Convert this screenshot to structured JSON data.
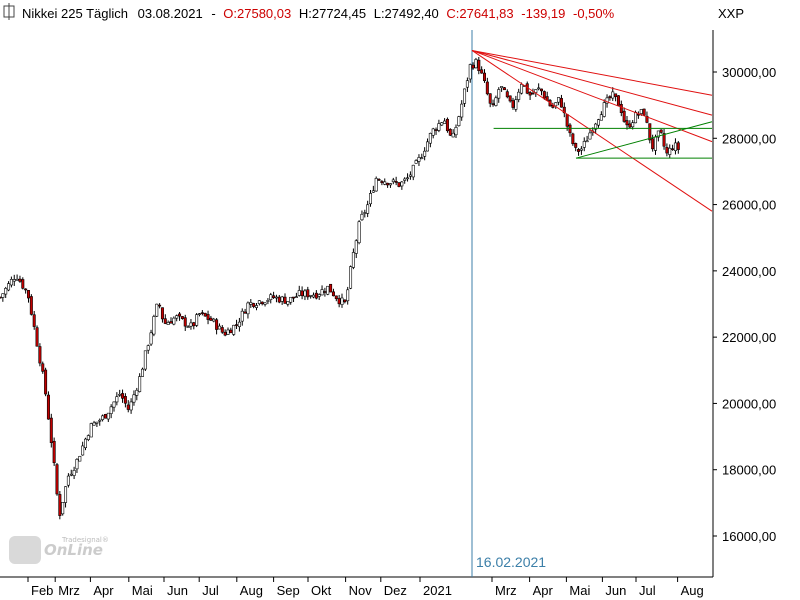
{
  "header": {
    "instrument": "Nikkei 225 Täglich",
    "date": "03.08.2021",
    "sep": "-",
    "open": "O:27580,03",
    "high": "H:27724,45",
    "low": "L:27492,40",
    "close": "C:27641,83",
    "change": "-139,19",
    "change_pct": "-0,50%",
    "symbol": "XXP"
  },
  "marker": {
    "label": "16.02.2021"
  },
  "logo": {
    "brand": "OnLine",
    "sub": "Tradesignal®"
  },
  "colors": {
    "up": "#ffffff",
    "down": "#c00000",
    "wick": "#000000",
    "resistance": "#e01010",
    "support": "#008000",
    "marker": "#3c7fa8"
  },
  "chart_data": {
    "type": "candlestick",
    "title": "Nikkei 225 Täglich",
    "ylim": [
      15000,
      31000
    ],
    "yticks": [
      16000,
      18000,
      20000,
      22000,
      24000,
      26000,
      28000,
      30000
    ],
    "ytick_labels": [
      "16000,00",
      "18000,00",
      "20000,00",
      "22000,00",
      "24000,00",
      "26000,00",
      "28000,00",
      "30000,00"
    ],
    "xticks": [
      {
        "label": "Feb",
        "t": 0.035
      },
      {
        "label": "Mrz",
        "t": 0.069
      },
      {
        "label": "Apr",
        "t": 0.113
      },
      {
        "label": "Mai",
        "t": 0.161
      },
      {
        "label": "Jun",
        "t": 0.205
      },
      {
        "label": "Jul",
        "t": 0.249
      },
      {
        "label": "Aug",
        "t": 0.296
      },
      {
        "label": "Sep",
        "t": 0.342
      },
      {
        "label": "Okt",
        "t": 0.385
      },
      {
        "label": "Nov",
        "t": 0.432
      },
      {
        "label": "Dez",
        "t": 0.476
      },
      {
        "label": "2021",
        "t": 0.525
      },
      {
        "label": "Mrz",
        "t": 0.615
      },
      {
        "label": "Apr",
        "t": 0.662
      },
      {
        "label": "Mai",
        "t": 0.708
      },
      {
        "label": "Jun",
        "t": 0.753
      },
      {
        "label": "Jul",
        "t": 0.795
      },
      {
        "label": "Aug",
        "t": 0.847
      }
    ],
    "price_path": [
      {
        "t": 0.0,
        "v": 23200
      },
      {
        "t": 0.02,
        "v": 23900
      },
      {
        "t": 0.035,
        "v": 23300
      },
      {
        "t": 0.045,
        "v": 22000
      },
      {
        "t": 0.056,
        "v": 20500
      },
      {
        "t": 0.066,
        "v": 18500
      },
      {
        "t": 0.074,
        "v": 16600
      },
      {
        "t": 0.085,
        "v": 17800
      },
      {
        "t": 0.095,
        "v": 18200
      },
      {
        "t": 0.113,
        "v": 19300
      },
      {
        "t": 0.13,
        "v": 19600
      },
      {
        "t": 0.15,
        "v": 20300
      },
      {
        "t": 0.161,
        "v": 19800
      },
      {
        "t": 0.175,
        "v": 20800
      },
      {
        "t": 0.19,
        "v": 22300
      },
      {
        "t": 0.198,
        "v": 23100
      },
      {
        "t": 0.205,
        "v": 22400
      },
      {
        "t": 0.22,
        "v": 22600
      },
      {
        "t": 0.24,
        "v": 22300
      },
      {
        "t": 0.249,
        "v": 22700
      },
      {
        "t": 0.265,
        "v": 22500
      },
      {
        "t": 0.28,
        "v": 22100
      },
      {
        "t": 0.296,
        "v": 22400
      },
      {
        "t": 0.31,
        "v": 23000
      },
      {
        "t": 0.325,
        "v": 23100
      },
      {
        "t": 0.342,
        "v": 23200
      },
      {
        "t": 0.36,
        "v": 23100
      },
      {
        "t": 0.375,
        "v": 23300
      },
      {
        "t": 0.395,
        "v": 23300
      },
      {
        "t": 0.41,
        "v": 23500
      },
      {
        "t": 0.425,
        "v": 23100
      },
      {
        "t": 0.432,
        "v": 23000
      },
      {
        "t": 0.44,
        "v": 24300
      },
      {
        "t": 0.45,
        "v": 25500
      },
      {
        "t": 0.46,
        "v": 26000
      },
      {
        "t": 0.47,
        "v": 26800
      },
      {
        "t": 0.485,
        "v": 26700
      },
      {
        "t": 0.5,
        "v": 26600
      },
      {
        "t": 0.51,
        "v": 26800
      },
      {
        "t": 0.525,
        "v": 27400
      },
      {
        "t": 0.54,
        "v": 28200
      },
      {
        "t": 0.555,
        "v": 28600
      },
      {
        "t": 0.565,
        "v": 27900
      },
      {
        "t": 0.575,
        "v": 28800
      },
      {
        "t": 0.588,
        "v": 30200
      },
      {
        "t": 0.596,
        "v": 30300
      },
      {
        "t": 0.605,
        "v": 29700
      },
      {
        "t": 0.615,
        "v": 28800
      },
      {
        "t": 0.625,
        "v": 29600
      },
      {
        "t": 0.64,
        "v": 28900
      },
      {
        "t": 0.652,
        "v": 29700
      },
      {
        "t": 0.662,
        "v": 29300
      },
      {
        "t": 0.675,
        "v": 29500
      },
      {
        "t": 0.69,
        "v": 28900
      },
      {
        "t": 0.7,
        "v": 29200
      },
      {
        "t": 0.712,
        "v": 28100
      },
      {
        "t": 0.72,
        "v": 27600
      },
      {
        "t": 0.728,
        "v": 27700
      },
      {
        "t": 0.74,
        "v": 28300
      },
      {
        "t": 0.753,
        "v": 28900
      },
      {
        "t": 0.765,
        "v": 29300
      },
      {
        "t": 0.775,
        "v": 29000
      },
      {
        "t": 0.783,
        "v": 28300
      },
      {
        "t": 0.795,
        "v": 28700
      },
      {
        "t": 0.805,
        "v": 28800
      },
      {
        "t": 0.815,
        "v": 27700
      },
      {
        "t": 0.825,
        "v": 28200
      },
      {
        "t": 0.833,
        "v": 27500
      },
      {
        "t": 0.842,
        "v": 27800
      },
      {
        "t": 0.85,
        "v": 27641
      }
    ],
    "trendlines": [
      {
        "color": "resistance",
        "from": {
          "t": 0.59,
          "v": 30650
        },
        "to": {
          "t": 0.89,
          "v": 29300
        }
      },
      {
        "color": "resistance",
        "from": {
          "t": 0.59,
          "v": 30650
        },
        "to": {
          "t": 0.89,
          "v": 28700
        }
      },
      {
        "color": "resistance",
        "from": {
          "t": 0.59,
          "v": 30650
        },
        "to": {
          "t": 0.89,
          "v": 27900
        }
      },
      {
        "color": "resistance",
        "from": {
          "t": 0.59,
          "v": 30650
        },
        "to": {
          "t": 0.89,
          "v": 25800
        }
      },
      {
        "color": "support",
        "from": {
          "t": 0.617,
          "v": 28300
        },
        "to": {
          "t": 0.89,
          "v": 28300
        }
      },
      {
        "color": "support",
        "from": {
          "t": 0.72,
          "v": 27400
        },
        "to": {
          "t": 0.89,
          "v": 27400
        }
      },
      {
        "color": "support",
        "from": {
          "t": 0.72,
          "v": 27400
        },
        "to": {
          "t": 0.89,
          "v": 28500
        }
      }
    ],
    "marker_t": 0.59
  }
}
